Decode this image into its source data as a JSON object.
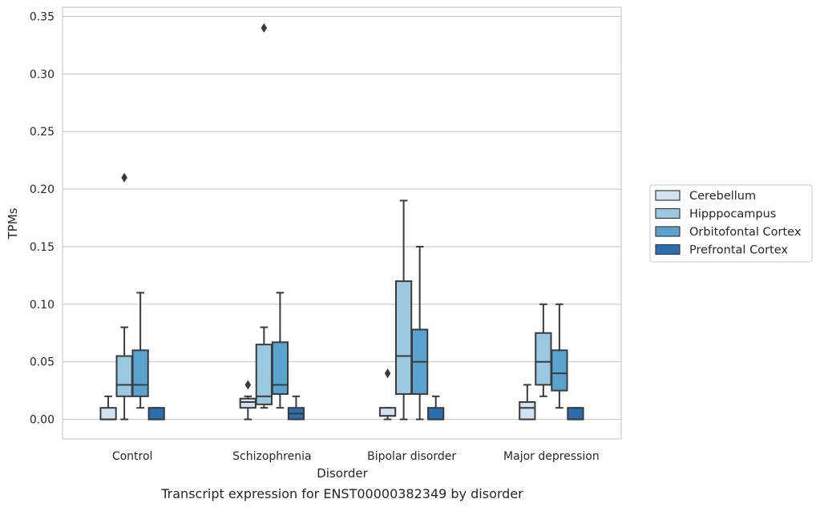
{
  "chart_data": {
    "type": "box",
    "xlabel": "Disorder",
    "ylabel": "TPMs",
    "caption": "Transcript expression for ENST00000382349 by disorder",
    "ylim": [
      -0.017,
      0.358
    ],
    "yticks": [
      "0.00",
      "0.05",
      "0.10",
      "0.15",
      "0.20",
      "0.25",
      "0.30",
      "0.35"
    ],
    "grid": "horizontal",
    "legend_position": "right",
    "categories": [
      "Control",
      "Schizophrenia",
      "Bipolar disorder",
      "Major depression"
    ],
    "series": [
      {
        "name": "Cerebellum",
        "color": "#d1e2f1",
        "boxes": [
          {
            "whislo": 0.0,
            "q1": 0.0,
            "med": 0.0,
            "q3": 0.01,
            "whishi": 0.02,
            "fliers": []
          },
          {
            "whislo": 0.0,
            "q1": 0.01,
            "med": 0.015,
            "q3": 0.018,
            "whishi": 0.02,
            "fliers": [
              0.03
            ]
          },
          {
            "whislo": 0.0,
            "q1": 0.003,
            "med": 0.003,
            "q3": 0.01,
            "whishi": 0.01,
            "fliers": [
              0.04
            ]
          },
          {
            "whislo": 0.0,
            "q1": 0.0,
            "med": 0.01,
            "q3": 0.015,
            "whishi": 0.03,
            "fliers": []
          }
        ]
      },
      {
        "name": "Hipppocampus",
        "color": "#9ac8e0",
        "boxes": [
          {
            "whislo": 0.0,
            "q1": 0.02,
            "med": 0.03,
            "q3": 0.055,
            "whishi": 0.08,
            "fliers": [
              0.21
            ]
          },
          {
            "whislo": 0.01,
            "q1": 0.013,
            "med": 0.02,
            "q3": 0.065,
            "whishi": 0.08,
            "fliers": [
              0.34
            ]
          },
          {
            "whislo": 0.0,
            "q1": 0.022,
            "med": 0.055,
            "q3": 0.12,
            "whishi": 0.19,
            "fliers": []
          },
          {
            "whislo": 0.02,
            "q1": 0.03,
            "med": 0.05,
            "q3": 0.075,
            "whishi": 0.1,
            "fliers": []
          }
        ]
      },
      {
        "name": "Orbitofontal Cortex",
        "color": "#5ba3cf",
        "boxes": [
          {
            "whislo": 0.01,
            "q1": 0.02,
            "med": 0.03,
            "q3": 0.06,
            "whishi": 0.11,
            "fliers": []
          },
          {
            "whislo": 0.01,
            "q1": 0.022,
            "med": 0.03,
            "q3": 0.067,
            "whishi": 0.11,
            "fliers": []
          },
          {
            "whislo": 0.0,
            "q1": 0.022,
            "med": 0.05,
            "q3": 0.078,
            "whishi": 0.15,
            "fliers": []
          },
          {
            "whislo": 0.01,
            "q1": 0.025,
            "med": 0.04,
            "q3": 0.06,
            "whishi": 0.1,
            "fliers": []
          }
        ]
      },
      {
        "name": "Prefrontal Cortex",
        "color": "#2a6eb0",
        "boxes": [
          {
            "whislo": 0.0,
            "q1": 0.0,
            "med": 0.0,
            "q3": 0.01,
            "whishi": 0.01,
            "fliers": []
          },
          {
            "whislo": 0.0,
            "q1": 0.0,
            "med": 0.005,
            "q3": 0.01,
            "whishi": 0.02,
            "fliers": []
          },
          {
            "whislo": 0.0,
            "q1": 0.0,
            "med": 0.0,
            "q3": 0.01,
            "whishi": 0.02,
            "fliers": []
          },
          {
            "whislo": 0.0,
            "q1": 0.0,
            "med": 0.0,
            "q3": 0.01,
            "whishi": 0.01,
            "fliers": []
          }
        ]
      }
    ]
  }
}
